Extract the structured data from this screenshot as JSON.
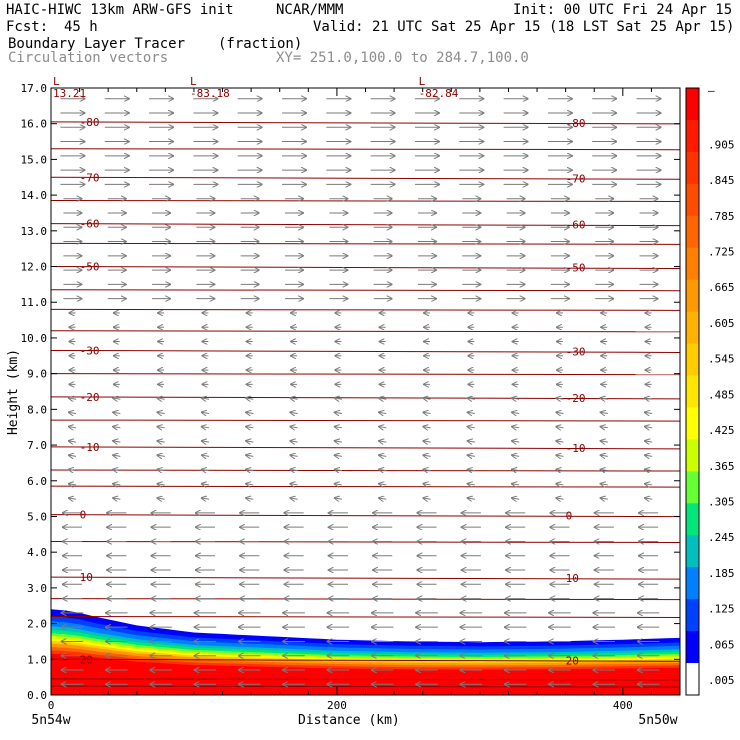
{
  "header": {
    "model": "HAIC-HIWC 13km ARW-GFS init",
    "org": "NCAR/MMM",
    "init": "Init: 00 UTC Fri 24 Apr 15",
    "fcst_label": "Fcst:",
    "fcst_value": "45 h",
    "valid": "Valid: 21 UTC Sat 25 Apr 15 (18 LST Sat 25 Apr 15)",
    "field": "Boundary Layer Tracer",
    "units": "(fraction)",
    "vectors": "Circulation vectors",
    "xy": "XY= 251.0,100.0 to 284.7,100.0"
  },
  "chart_data": {
    "type": "heatmap",
    "xlabel": "Distance (km)",
    "ylabel": "Height (km)",
    "xlim": [
      0,
      440
    ],
    "ylim": [
      0,
      17
    ],
    "x_ticks": [
      0,
      200,
      400
    ],
    "y_ticks": [
      "0.0",
      "1.0",
      "2.0",
      "3.0",
      "4.0",
      "5.0",
      "6.0",
      "7.0",
      "8.0",
      "9.0",
      "10.0",
      "11.0",
      "12.0",
      "13.0",
      "14.0",
      "15.0",
      "16.0",
      "17.0"
    ],
    "endpoints": {
      "left": "5n54w",
      "right": "5n50w"
    },
    "colorbar": {
      "labels": [
        "–",
        ".905",
        ".845",
        ".785",
        ".725",
        ".665",
        ".605",
        ".545",
        ".485",
        ".425",
        ".365",
        ".305",
        ".245",
        ".185",
        ".125",
        ".065",
        ".005"
      ],
      "colors": [
        "#ff0000",
        "#ff1a00",
        "#ff3300",
        "#ff4d00",
        "#ff6600",
        "#ff8000",
        "#ff9900",
        "#ffb300",
        "#ffcc00",
        "#ffe600",
        "#ffff00",
        "#ccff00",
        "#66ff33",
        "#00e67a",
        "#00bfbf",
        "#0080ff",
        "#0040ff",
        "#0000ff",
        "#ffffff"
      ]
    },
    "tracer_top_km": [
      [
        0,
        2.4
      ],
      [
        15,
        2.35
      ],
      [
        30,
        2.2
      ],
      [
        60,
        1.95
      ],
      [
        100,
        1.75
      ],
      [
        150,
        1.65
      ],
      [
        200,
        1.55
      ],
      [
        250,
        1.5
      ],
      [
        300,
        1.48
      ],
      [
        350,
        1.5
      ],
      [
        400,
        1.55
      ],
      [
        440,
        1.6
      ]
    ],
    "temperature_contours": [
      {
        "label": "-80",
        "y": 16.05
      },
      {
        "label": "-70",
        "y": 14.5
      },
      {
        "label": "-60",
        "y": 13.2
      },
      {
        "label": "-50",
        "y": 12.0
      },
      {
        "label": "-30",
        "y": 9.65
      },
      {
        "label": "-20",
        "y": 8.35
      },
      {
        "label": "-10",
        "y": 6.95
      },
      {
        "label": "0",
        "y": 5.05
      },
      {
        "label": "10",
        "y": 3.3
      },
      {
        "label": "20",
        "y": 1.0
      }
    ],
    "lows": [
      {
        "label": "L",
        "value": "13.21",
        "x": 0,
        "y": 16.8
      },
      {
        "label": "L",
        "value": "-83.18",
        "x": 100,
        "y": 16.8
      },
      {
        "label": "L",
        "value": "-82.84",
        "x": 260,
        "y": 16.8
      }
    ],
    "vector_layers": [
      {
        "z_min": 14.0,
        "z_max": 17.0,
        "u": 1.0,
        "w": 0.0
      },
      {
        "z_min": 11.0,
        "z_max": 14.0,
        "u": 0.75,
        "w": 0.0
      },
      {
        "z_min": 8.5,
        "z_max": 11.0,
        "u": -0.25,
        "w": 0.0
      },
      {
        "z_min": 5.5,
        "z_max": 8.5,
        "u": -0.3,
        "w": 0.05
      },
      {
        "z_min": 2.5,
        "z_max": 5.5,
        "u": -0.8,
        "w": 0.0
      },
      {
        "z_min": 0.1,
        "z_max": 2.5,
        "u": -0.9,
        "w": 0.0
      }
    ]
  }
}
